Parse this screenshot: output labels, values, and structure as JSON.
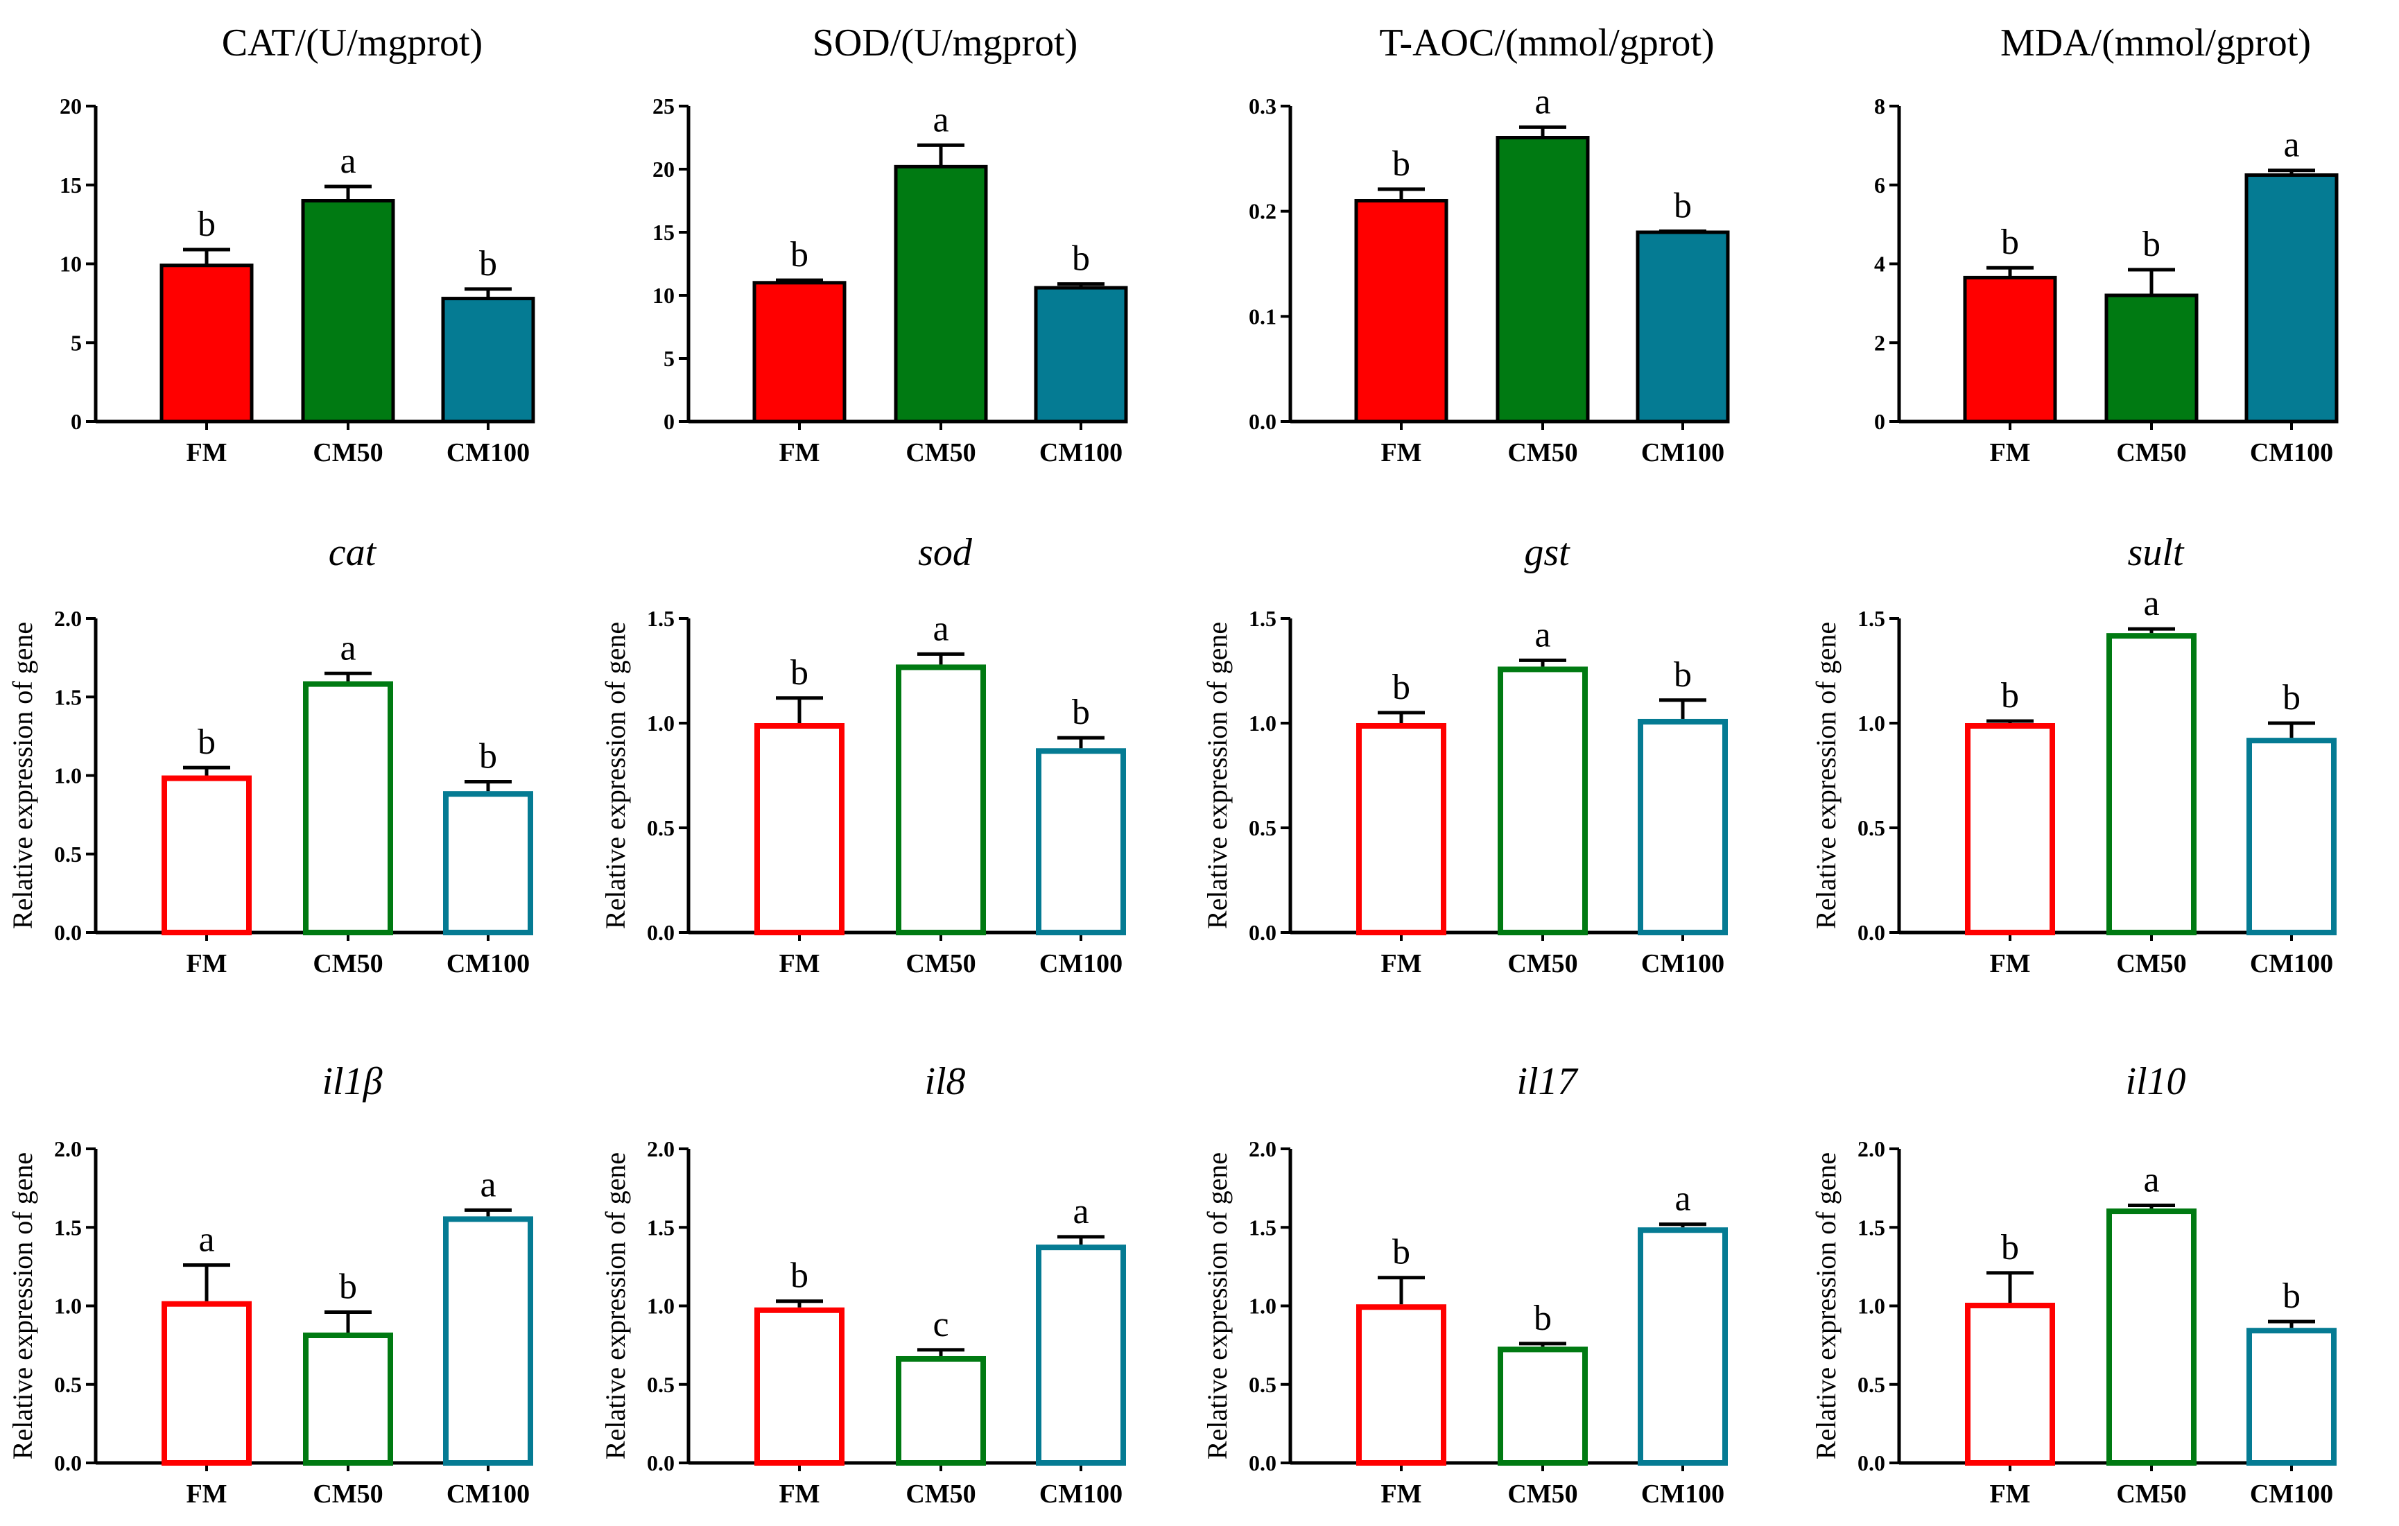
{
  "figure": {
    "colors": {
      "FM": "#ff0000",
      "CM50": "#007a12",
      "CM100": "#057b93",
      "axis": "#000000"
    }
  },
  "chart_data": [
    {
      "type": "bar",
      "style": "filled",
      "title": "CAT/(U/mgprot)",
      "title_italic": false,
      "ylabel": "",
      "categories": [
        "FM",
        "CM50",
        "CM100"
      ],
      "values": [
        9.9,
        14.0,
        7.8
      ],
      "errors": [
        1.0,
        0.9,
        0.6
      ],
      "letters": [
        "b",
        "a",
        "b"
      ],
      "ylim": [
        0,
        20
      ],
      "yticks": [
        0,
        5,
        10,
        15,
        20
      ],
      "ytick_labels": [
        "0",
        "5",
        "10",
        "15",
        "20"
      ]
    },
    {
      "type": "bar",
      "style": "filled",
      "title": "SOD/(U/mgprot)",
      "title_italic": false,
      "ylabel": "",
      "categories": [
        "FM",
        "CM50",
        "CM100"
      ],
      "values": [
        11.0,
        20.2,
        10.6
      ],
      "errors": [
        0.2,
        1.7,
        0.3
      ],
      "letters": [
        "b",
        "a",
        "b"
      ],
      "ylim": [
        0,
        25
      ],
      "yticks": [
        0,
        5,
        10,
        15,
        20,
        25
      ],
      "ytick_labels": [
        "0",
        "5",
        "10",
        "15",
        "20",
        "25"
      ]
    },
    {
      "type": "bar",
      "style": "filled",
      "title": "T-AOC/(mmol/gprot)",
      "title_italic": false,
      "ylabel": "",
      "categories": [
        "FM",
        "CM50",
        "CM100"
      ],
      "values": [
        0.21,
        0.27,
        0.18
      ],
      "errors": [
        0.011,
        0.01,
        0.001
      ],
      "letters": [
        "b",
        "a",
        "b"
      ],
      "ylim": [
        0,
        0.3
      ],
      "yticks": [
        0,
        0.1,
        0.2,
        0.3
      ],
      "ytick_labels": [
        "0.0",
        "0.1",
        "0.2",
        "0.3"
      ]
    },
    {
      "type": "bar",
      "style": "filled",
      "title": "MDA/(mmol/gprot)",
      "title_italic": false,
      "ylabel": "",
      "categories": [
        "FM",
        "CM50",
        "CM100"
      ],
      "values": [
        3.65,
        3.2,
        6.25
      ],
      "errors": [
        0.25,
        0.65,
        0.12
      ],
      "letters": [
        "b",
        "b",
        "a"
      ],
      "ylim": [
        0,
        8
      ],
      "yticks": [
        0,
        2,
        4,
        6,
        8
      ],
      "ytick_labels": [
        "0",
        "2",
        "4",
        "6",
        "8"
      ]
    },
    {
      "type": "bar",
      "style": "outline",
      "title": "cat",
      "title_italic": true,
      "ylabel": "Relative expression of gene",
      "categories": [
        "FM",
        "CM50",
        "CM100"
      ],
      "values": [
        1.0,
        1.6,
        0.9
      ],
      "errors": [
        0.05,
        0.05,
        0.06
      ],
      "letters": [
        "b",
        "a",
        "b"
      ],
      "ylim": [
        0,
        2.0
      ],
      "yticks": [
        0,
        0.5,
        1.0,
        1.5,
        2.0
      ],
      "ytick_labels": [
        "0.0",
        "0.5",
        "1.0",
        "1.5",
        "2.0"
      ]
    },
    {
      "type": "bar",
      "style": "outline",
      "title": "sod",
      "title_italic": true,
      "ylabel": "Relative expression of gene",
      "categories": [
        "FM",
        "CM50",
        "CM100"
      ],
      "values": [
        1.0,
        1.28,
        0.88
      ],
      "errors": [
        0.12,
        0.05,
        0.05
      ],
      "letters": [
        "b",
        "a",
        "b"
      ],
      "ylim": [
        0,
        1.5
      ],
      "yticks": [
        0,
        0.5,
        1.0,
        1.5
      ],
      "ytick_labels": [
        "0.0",
        "0.5",
        "1.0",
        "1.5"
      ]
    },
    {
      "type": "bar",
      "style": "outline",
      "title": "gst",
      "title_italic": true,
      "ylabel": "Relative expression of gene",
      "categories": [
        "FM",
        "CM50",
        "CM100"
      ],
      "values": [
        1.0,
        1.27,
        1.02
      ],
      "errors": [
        0.05,
        0.03,
        0.09
      ],
      "letters": [
        "b",
        "a",
        "b"
      ],
      "ylim": [
        0,
        1.5
      ],
      "yticks": [
        0,
        0.5,
        1.0,
        1.5
      ],
      "ytick_labels": [
        "0.0",
        "0.5",
        "1.0",
        "1.5"
      ]
    },
    {
      "type": "bar",
      "style": "outline",
      "title": "sult",
      "title_italic": true,
      "ylabel": "Relative expression of gene",
      "categories": [
        "FM",
        "CM50",
        "CM100"
      ],
      "values": [
        1.0,
        1.43,
        0.93
      ],
      "errors": [
        0.01,
        0.02,
        0.07
      ],
      "letters": [
        "b",
        "a",
        "b"
      ],
      "ylim": [
        0,
        1.5
      ],
      "yticks": [
        0,
        0.5,
        1.0,
        1.5
      ],
      "ytick_labels": [
        "0.0",
        "0.5",
        "1.0",
        "1.5"
      ]
    },
    {
      "type": "bar",
      "style": "outline",
      "title": "il1β",
      "title_italic": true,
      "ylabel": "Relative expression of gene",
      "categories": [
        "FM",
        "CM50",
        "CM100"
      ],
      "values": [
        1.03,
        0.83,
        1.57
      ],
      "errors": [
        0.23,
        0.13,
        0.04
      ],
      "letters": [
        "a",
        "b",
        "a"
      ],
      "ylim": [
        0,
        2.0
      ],
      "yticks": [
        0,
        0.5,
        1.0,
        1.5,
        2.0
      ],
      "ytick_labels": [
        "0.0",
        "0.5",
        "1.0",
        "1.5",
        "2.0"
      ]
    },
    {
      "type": "bar",
      "style": "outline",
      "title": "il8",
      "title_italic": true,
      "ylabel": "Relative expression of gene",
      "categories": [
        "FM",
        "CM50",
        "CM100"
      ],
      "values": [
        0.99,
        0.68,
        1.39
      ],
      "errors": [
        0.04,
        0.04,
        0.05
      ],
      "letters": [
        "b",
        "c",
        "a"
      ],
      "ylim": [
        0,
        2.0
      ],
      "yticks": [
        0,
        0.5,
        1.0,
        1.5,
        2.0
      ],
      "ytick_labels": [
        "0.0",
        "0.5",
        "1.0",
        "1.5",
        "2.0"
      ]
    },
    {
      "type": "bar",
      "style": "outline",
      "title": "il17",
      "title_italic": true,
      "ylabel": "Relative expression of gene",
      "categories": [
        "FM",
        "CM50",
        "CM100"
      ],
      "values": [
        1.01,
        0.74,
        1.5
      ],
      "errors": [
        0.17,
        0.02,
        0.02
      ],
      "letters": [
        "b",
        "b",
        "a"
      ],
      "ylim": [
        0,
        2.0
      ],
      "yticks": [
        0,
        0.5,
        1.0,
        1.5,
        2.0
      ],
      "ytick_labels": [
        "0.0",
        "0.5",
        "1.0",
        "1.5",
        "2.0"
      ]
    },
    {
      "type": "bar",
      "style": "outline",
      "title": "il10",
      "title_italic": true,
      "ylabel": "Relative expression of gene",
      "categories": [
        "FM",
        "CM50",
        "CM100"
      ],
      "values": [
        1.02,
        1.62,
        0.86
      ],
      "errors": [
        0.19,
        0.02,
        0.04
      ],
      "letters": [
        "b",
        "a",
        "b"
      ],
      "ylim": [
        0,
        2.0
      ],
      "yticks": [
        0,
        0.5,
        1.0,
        1.5,
        2.0
      ],
      "ytick_labels": [
        "0.0",
        "0.5",
        "1.0",
        "1.5",
        "2.0"
      ]
    }
  ]
}
